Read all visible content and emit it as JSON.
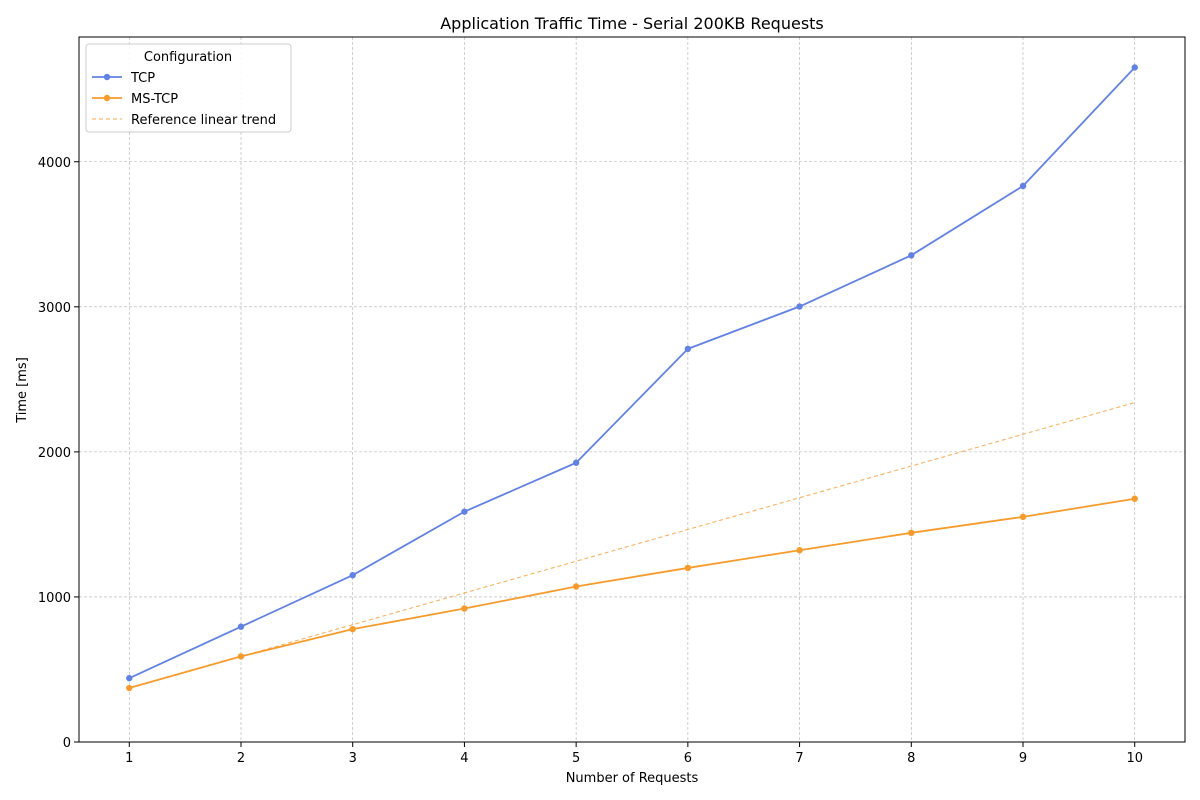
{
  "chart_data": {
    "type": "line",
    "title": "Application Traffic Time - Serial 200KB Requests",
    "xlabel": "Number of Requests",
    "ylabel": "Time [ms]",
    "x": [
      1,
      2,
      3,
      4,
      5,
      6,
      7,
      8,
      9,
      10
    ],
    "xlim": [
      0.55,
      10.45
    ],
    "ylim": [
      0,
      4860
    ],
    "xticks": [
      1,
      2,
      3,
      4,
      5,
      6,
      7,
      8,
      9,
      10
    ],
    "yticks": [
      0,
      1000,
      2000,
      3000,
      4000
    ],
    "grid": true,
    "legend": {
      "title": "Configuration",
      "placement": "top-left"
    },
    "series": [
      {
        "name": "TCP",
        "color": "#6282e3",
        "style": "solid-markers",
        "values": [
          440,
          795,
          1150,
          1588,
          1925,
          2710,
          3002,
          3355,
          3833,
          4650
        ]
      },
      {
        "name": "MS-TCP",
        "color": "#f89b2d",
        "style": "solid-markers",
        "values": [
          372,
          590,
          778,
          920,
          1072,
          1200,
          1322,
          1442,
          1552,
          1677
        ]
      },
      {
        "name": "Reference linear trend",
        "color": "#f8a94e",
        "style": "dashed",
        "x": [
          2,
          10
        ],
        "values": [
          590,
          2340
        ]
      }
    ]
  }
}
